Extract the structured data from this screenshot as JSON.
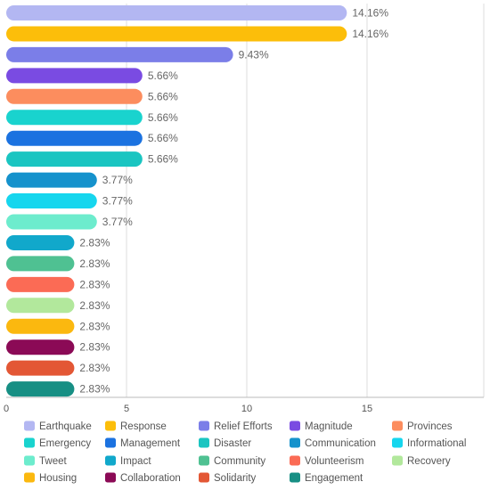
{
  "chart_data": {
    "type": "bar",
    "orientation": "horizontal",
    "title": "",
    "xlabel": "",
    "ylabel": "",
    "xlim": [
      0,
      20
    ],
    "x_ticks": [
      0,
      5,
      10,
      15
    ],
    "grid": true,
    "legend_position": "bottom",
    "categories": [
      "Earthquake",
      "Response",
      "Relief Efforts",
      "Magnitude",
      "Provinces",
      "Emergency",
      "Management",
      "Disaster",
      "Communication",
      "Informational",
      "Tweet",
      "Impact",
      "Community",
      "Volunteerism",
      "Recovery",
      "Housing",
      "Collaboration",
      "Solidarity",
      "Engagement"
    ],
    "values": [
      14.16,
      14.16,
      9.43,
      5.66,
      5.66,
      5.66,
      5.66,
      5.66,
      3.77,
      3.77,
      3.77,
      2.83,
      2.83,
      2.83,
      2.83,
      2.83,
      2.83,
      2.83,
      2.83
    ],
    "value_labels": [
      "14.16%",
      "14.16%",
      "9.43%",
      "5.66%",
      "5.66%",
      "5.66%",
      "5.66%",
      "5.66%",
      "3.77%",
      "3.77%",
      "3.77%",
      "2.83%",
      "2.83%",
      "2.83%",
      "2.83%",
      "2.83%",
      "2.83%",
      "2.83%",
      "2.83%"
    ],
    "colors": [
      "#b3b7f2",
      "#fcbe0a",
      "#7b7ee8",
      "#7a4be2",
      "#fc8d5e",
      "#19d3ce",
      "#1b72e0",
      "#1ac5c1",
      "#1592cc",
      "#16d6ee",
      "#6deccd",
      "#11a8cb",
      "#4fc192",
      "#fb6b55",
      "#b2e89c",
      "#fbb80f",
      "#8b0a56",
      "#e35735",
      "#178f84"
    ]
  }
}
